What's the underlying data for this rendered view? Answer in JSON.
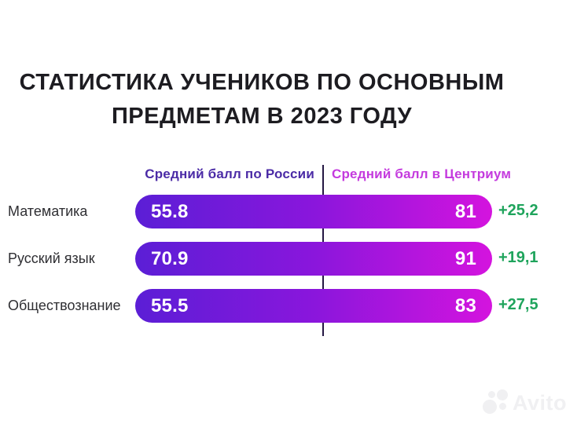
{
  "title": {
    "line1": "СТАТИСТИКА УЧЕНИКОВ ПО ОСНОВНЫМ",
    "line2": "ПРЕДМЕТАМ В 2023 ГОДУ"
  },
  "legend": {
    "russia": "Средний балл по России",
    "centrium": "Средний балл в Центриум"
  },
  "rows": [
    {
      "label": "Математика",
      "russia": "55.8",
      "centrium": "81",
      "delta": "+25,2"
    },
    {
      "label": "Русский язык",
      "russia": "70.9",
      "centrium": "91",
      "delta": "+19,1"
    },
    {
      "label": "Обществознание",
      "russia": "55.5",
      "centrium": "83",
      "delta": "+27,5"
    }
  ],
  "watermark": {
    "text": "Avito"
  },
  "colors": {
    "title_text": "#1d1c21",
    "label_text": "#2f2f33",
    "legend_russia": "#4b2ba6",
    "legend_centrium": "#c43ade",
    "divider": "#241743",
    "bar_gradient_start": "#5b1ed6",
    "bar_gradient_end": "#d414de",
    "delta_green": "#1fa45c",
    "watermark_gray": "#f0f0f2",
    "background": "#ffffff"
  },
  "chart_data": {
    "type": "bar",
    "orientation": "horizontal",
    "title": "СТАТИСТИКА УЧЕНИКОВ ПО ОСНОВНЫМ ПРЕДМЕТАМ В 2023 ГОДУ",
    "categories": [
      "Математика",
      "Русский язык",
      "Обществознание"
    ],
    "series": [
      {
        "name": "Средний балл по России",
        "values": [
          55.8,
          70.9,
          55.5
        ]
      },
      {
        "name": "Средний балл в Центриум",
        "values": [
          81,
          91,
          83
        ]
      }
    ],
    "deltas": [
      25.2,
      19.1,
      27.5
    ],
    "legend_position": "top",
    "grid": false,
    "value_labels": "inside-bar-ends"
  }
}
